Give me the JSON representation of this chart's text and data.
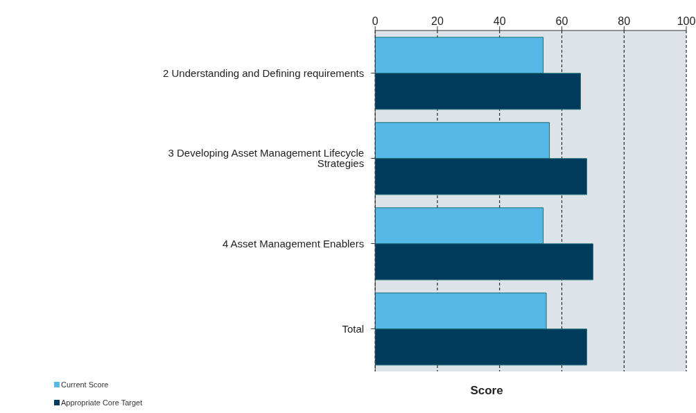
{
  "chart_data": {
    "type": "bar",
    "orientation": "horizontal",
    "xlabel": "Score",
    "categories": [
      "2 Understanding and Defining requirements",
      "3 Developing Asset Management Lifecycle Strategies",
      "4 Asset Management Enablers",
      "Total"
    ],
    "series": [
      {
        "name": "Current Score",
        "color": "#56b8e6",
        "values": [
          54,
          56,
          54,
          55
        ]
      },
      {
        "name": "Appropriate Core Target",
        "color": "#003a5c",
        "values": [
          66,
          68,
          70,
          68
        ]
      }
    ],
    "xlim": [
      0,
      100
    ],
    "xticks": [
      0,
      20,
      40,
      60,
      80,
      100
    ],
    "grid": "x",
    "legend": "bottom left"
  }
}
